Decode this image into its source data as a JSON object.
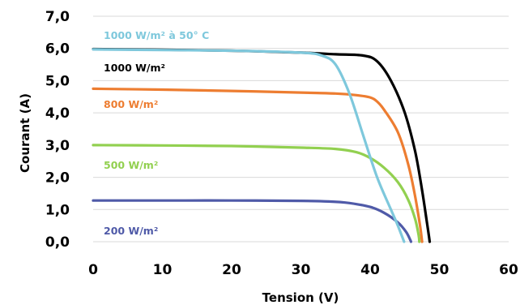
{
  "chart_data": {
    "type": "line",
    "title": "",
    "xlabel": "Tension (V)",
    "ylabel": "Courant (A)",
    "xlim": [
      0,
      60
    ],
    "ylim": [
      0,
      7
    ],
    "x_ticks": [
      {
        "value": 0,
        "label": "0"
      },
      {
        "value": 10,
        "label": "10"
      },
      {
        "value": 20,
        "label": "20"
      },
      {
        "value": 30,
        "label": "30"
      },
      {
        "value": 40,
        "label": "40"
      },
      {
        "value": 50,
        "label": "50"
      },
      {
        "value": 60,
        "label": "60"
      }
    ],
    "y_ticks": [
      {
        "value": 0,
        "label": "0,0"
      },
      {
        "value": 1,
        "label": "1,0"
      },
      {
        "value": 2,
        "label": "2,0"
      },
      {
        "value": 3,
        "label": "3,0"
      },
      {
        "value": 4,
        "label": "4,0"
      },
      {
        "value": 5,
        "label": "5,0"
      },
      {
        "value": 6,
        "label": "6,0"
      },
      {
        "value": 7,
        "label": "7,0"
      }
    ],
    "grid": "horizontal",
    "legend": "inline labels",
    "series": [
      {
        "name": "1000 W/m² à 50° C",
        "color": "#7ec8dc",
        "points": [
          [
            0,
            5.97
          ],
          [
            10,
            5.95
          ],
          [
            20,
            5.93
          ],
          [
            30,
            5.87
          ],
          [
            33,
            5.78
          ],
          [
            35,
            5.5
          ],
          [
            37,
            4.6
          ],
          [
            39,
            3.3
          ],
          [
            41,
            2.0
          ],
          [
            43,
            1.0
          ],
          [
            44,
            0.5
          ],
          [
            44.9,
            0
          ]
        ]
      },
      {
        "name": "1000 W/m²",
        "color": "#000000",
        "points": [
          [
            0,
            5.98
          ],
          [
            10,
            5.96
          ],
          [
            20,
            5.93
          ],
          [
            30,
            5.87
          ],
          [
            35,
            5.82
          ],
          [
            39,
            5.78
          ],
          [
            41,
            5.6
          ],
          [
            43,
            5.0
          ],
          [
            45,
            4.0
          ],
          [
            46.5,
            2.8
          ],
          [
            47.5,
            1.6
          ],
          [
            48.2,
            0.6
          ],
          [
            48.6,
            0
          ]
        ]
      },
      {
        "name": "800 W/m²",
        "color": "#ed7d31",
        "points": [
          [
            0,
            4.75
          ],
          [
            10,
            4.72
          ],
          [
            20,
            4.68
          ],
          [
            30,
            4.63
          ],
          [
            35,
            4.6
          ],
          [
            38,
            4.55
          ],
          [
            40,
            4.48
          ],
          [
            41,
            4.35
          ],
          [
            42,
            4.1
          ],
          [
            44,
            3.4
          ],
          [
            45.5,
            2.4
          ],
          [
            46.5,
            1.4
          ],
          [
            47.2,
            0.5
          ],
          [
            47.5,
            0
          ]
        ]
      },
      {
        "name": "500 W/m²",
        "color": "#92d050",
        "points": [
          [
            0,
            3.0
          ],
          [
            10,
            2.99
          ],
          [
            20,
            2.97
          ],
          [
            30,
            2.92
          ],
          [
            35,
            2.88
          ],
          [
            38,
            2.78
          ],
          [
            40,
            2.6
          ],
          [
            42,
            2.3
          ],
          [
            44,
            1.85
          ],
          [
            45.5,
            1.3
          ],
          [
            46.5,
            0.7
          ],
          [
            47,
            0.2
          ],
          [
            47.1,
            0
          ]
        ]
      },
      {
        "name": "200 W/m²",
        "color": "#4f5aa8",
        "points": [
          [
            0,
            1.28
          ],
          [
            10,
            1.28
          ],
          [
            20,
            1.28
          ],
          [
            30,
            1.27
          ],
          [
            34,
            1.25
          ],
          [
            37,
            1.2
          ],
          [
            40,
            1.08
          ],
          [
            42,
            0.9
          ],
          [
            44,
            0.6
          ],
          [
            45.2,
            0.3
          ],
          [
            45.8,
            0.05
          ],
          [
            45.9,
            0
          ]
        ]
      }
    ]
  }
}
